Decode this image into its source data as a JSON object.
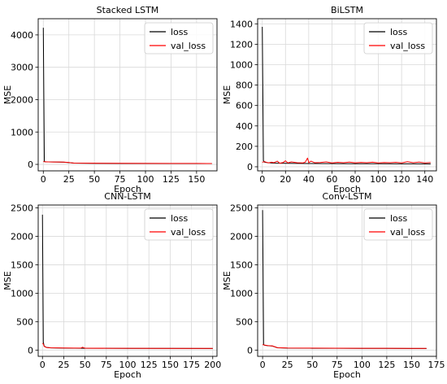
{
  "chart_data": [
    {
      "type": "line",
      "title": "Stacked LSTM",
      "xlabel": "Epoch",
      "ylabel": "MSE",
      "xlim": [
        -5,
        170
      ],
      "ylim": [
        -200,
        4500
      ],
      "xticks": [
        0,
        25,
        50,
        75,
        100,
        125,
        150
      ],
      "yticks": [
        0,
        1000,
        2000,
        3000,
        4000
      ],
      "grid": true,
      "legend_position": "top-right",
      "series": [
        {
          "name": "loss",
          "color": "#000000",
          "x": [
            0,
            1,
            2,
            5,
            10,
            15,
            20,
            25,
            30,
            50,
            75,
            100,
            125,
            150,
            165
          ],
          "y": [
            4220,
            90,
            80,
            75,
            72,
            70,
            68,
            55,
            38,
            33,
            30,
            28,
            27,
            26,
            25
          ]
        },
        {
          "name": "val_loss",
          "color": "#ff0000",
          "x": [
            0,
            1,
            2,
            5,
            10,
            15,
            20,
            25,
            30,
            50,
            75,
            100,
            125,
            150,
            165
          ],
          "y": [
            85,
            82,
            80,
            76,
            74,
            72,
            70,
            57,
            40,
            35,
            32,
            30,
            29,
            28,
            27
          ]
        }
      ]
    },
    {
      "type": "line",
      "title": "BiLSTM",
      "xlabel": "Epoch",
      "ylabel": "MSE",
      "xlim": [
        -4,
        150
      ],
      "ylim": [
        -40,
        1450
      ],
      "xticks": [
        0,
        20,
        40,
        60,
        80,
        100,
        120,
        140
      ],
      "yticks": [
        0,
        200,
        400,
        600,
        800,
        1000,
        1200,
        1400
      ],
      "grid": true,
      "legend_position": "top-right",
      "series": [
        {
          "name": "loss",
          "color": "#000000",
          "x": [
            0,
            1,
            2,
            5,
            10,
            20,
            40,
            60,
            80,
            100,
            120,
            145
          ],
          "y": [
            1370,
            60,
            45,
            40,
            36,
            34,
            32,
            31,
            30,
            30,
            29,
            28
          ]
        },
        {
          "name": "val_loss",
          "color": "#ff0000",
          "x": [
            0,
            2,
            5,
            8,
            10,
            13,
            15,
            18,
            20,
            22,
            25,
            30,
            35,
            37,
            39,
            40,
            42,
            45,
            50,
            55,
            60,
            65,
            70,
            75,
            80,
            85,
            90,
            95,
            100,
            105,
            110,
            115,
            120,
            125,
            130,
            135,
            140,
            145
          ],
          "y": [
            45,
            50,
            38,
            45,
            40,
            55,
            35,
            42,
            58,
            38,
            48,
            40,
            38,
            45,
            85,
            40,
            55,
            40,
            42,
            48,
            38,
            44,
            40,
            46,
            39,
            43,
            40,
            45,
            38,
            42,
            40,
            44,
            38,
            50,
            40,
            46,
            38,
            42
          ]
        }
      ]
    },
    {
      "type": "line",
      "title": "CNN-LSTM",
      "xlabel": "Epoch",
      "ylabel": "MSE",
      "xlim": [
        -5,
        205
      ],
      "ylim": [
        -110,
        2550
      ],
      "xticks": [
        0,
        25,
        50,
        75,
        100,
        125,
        150,
        175,
        200
      ],
      "yticks": [
        0,
        500,
        1000,
        1500,
        2000,
        2500
      ],
      "grid": true,
      "legend_position": "top-right",
      "series": [
        {
          "name": "loss",
          "color": "#000000",
          "x": [
            0,
            1,
            2,
            5,
            10,
            25,
            50,
            75,
            100,
            150,
            200
          ],
          "y": [
            2380,
            140,
            70,
            45,
            38,
            34,
            32,
            31,
            30,
            29,
            28
          ]
        },
        {
          "name": "val_loss",
          "color": "#ff0000",
          "x": [
            0,
            1,
            2,
            5,
            10,
            25,
            45,
            47,
            50,
            75,
            100,
            150,
            200
          ],
          "y": [
            120,
            110,
            65,
            45,
            40,
            36,
            34,
            50,
            33,
            32,
            31,
            30,
            29
          ]
        }
      ]
    },
    {
      "type": "line",
      "title": "Conv-LSTM",
      "xlabel": "Epoch",
      "ylabel": "MSE",
      "xlim": [
        -5,
        175
      ],
      "ylim": [
        -110,
        2550
      ],
      "xticks": [
        0,
        25,
        50,
        75,
        100,
        125,
        150,
        175
      ],
      "yticks": [
        0,
        500,
        1000,
        1500,
        2000,
        2500
      ],
      "grid": true,
      "legend_position": "top-right",
      "series": [
        {
          "name": "loss",
          "color": "#000000",
          "x": [
            0,
            1,
            2,
            5,
            10,
            15,
            25,
            50,
            75,
            100,
            125,
            150,
            165
          ],
          "y": [
            2460,
            100,
            85,
            78,
            70,
            40,
            34,
            32,
            31,
            30,
            29,
            28,
            28
          ]
        },
        {
          "name": "val_loss",
          "color": "#ff0000",
          "x": [
            0,
            1,
            2,
            5,
            10,
            15,
            25,
            50,
            75,
            100,
            125,
            150,
            165
          ],
          "y": [
            95,
            92,
            88,
            80,
            72,
            42,
            36,
            34,
            33,
            32,
            31,
            30,
            30
          ]
        }
      ]
    }
  ]
}
